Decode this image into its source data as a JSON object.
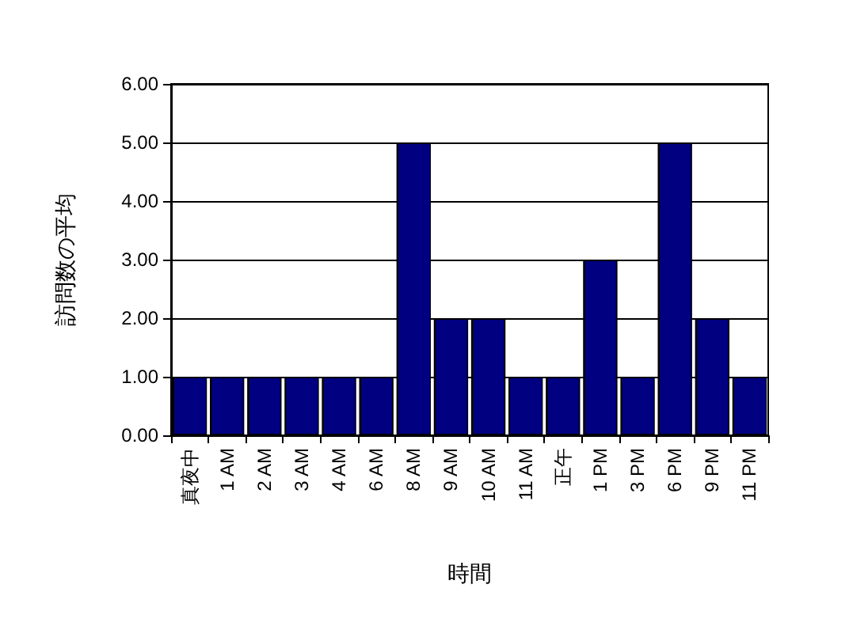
{
  "chart_data": {
    "type": "bar",
    "xlabel": "時間",
    "ylabel": "訪問数の平均",
    "categories": [
      "真夜中",
      "1 AM",
      "2 AM",
      "3 AM",
      "4 AM",
      "6 AM",
      "8 AM",
      "9 AM",
      "10 AM",
      "11 AM",
      "正午",
      "1 PM",
      "3 PM",
      "6 PM",
      "9 PM",
      "11 PM"
    ],
    "values": [
      1,
      1,
      1,
      1,
      1,
      1,
      5,
      2,
      2,
      1,
      1,
      3,
      1,
      5,
      2,
      1
    ],
    "color": "#000080",
    "ylim": [
      0,
      6
    ],
    "yticks": [
      {
        "value": 0,
        "label": "0.00"
      },
      {
        "value": 1,
        "label": "1.00"
      },
      {
        "value": 2,
        "label": "2.00"
      },
      {
        "value": 3,
        "label": "3.00"
      },
      {
        "value": 4,
        "label": "4.00"
      },
      {
        "value": 5,
        "label": "5.00"
      },
      {
        "value": 6,
        "label": "6.00"
      }
    ],
    "grid": "y"
  }
}
